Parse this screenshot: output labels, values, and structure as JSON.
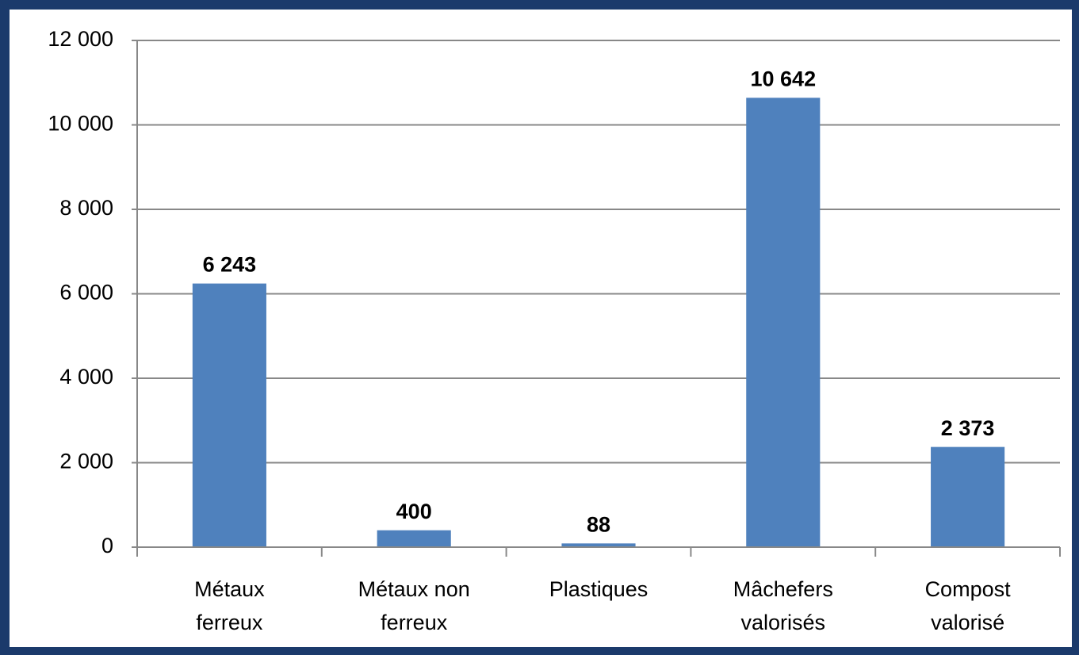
{
  "chart_data": {
    "type": "bar",
    "categories": [
      "Métaux\nferreux",
      "Métaux non\nferreux",
      "Plastiques",
      "Mâchefers\nvalorisés",
      "Compost\nvalorisé"
    ],
    "values": [
      6243,
      400,
      88,
      10642,
      2373
    ],
    "value_labels": [
      "6 243",
      "400",
      "88",
      "10 642",
      "2 373"
    ],
    "color": "#4f81bd",
    "ylim": [
      0,
      12000
    ],
    "yticks": [
      0,
      {
        "value": 2000,
        "label": "2 000"
      },
      {
        "value": 4000,
        "label": "4 000"
      },
      {
        "value": 6000,
        "label": "6 000"
      },
      {
        "value": 8000,
        "label": "8 000"
      },
      {
        "value": 10000,
        "label": "10 000"
      },
      {
        "value": 12000,
        "label": "12 000"
      }
    ],
    "grid": true
  }
}
